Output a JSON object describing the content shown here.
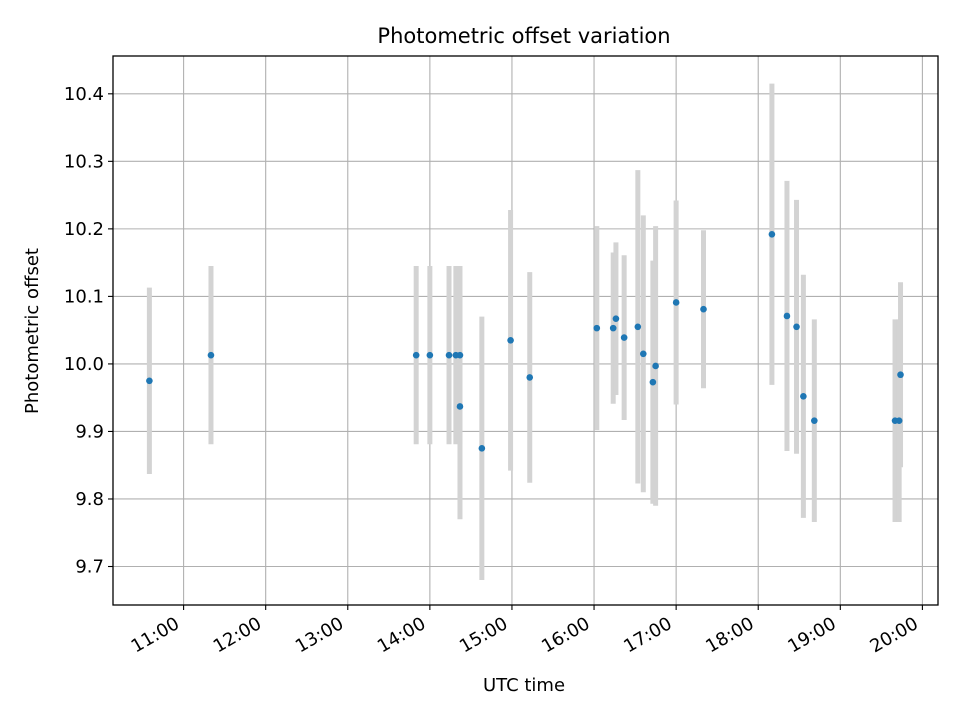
{
  "chart_data": {
    "type": "scatter",
    "title": "Photometric offset variation",
    "xlabel": "UTC time",
    "ylabel": "Photometric offset",
    "x_tick_labels": [
      "11:00",
      "12:00",
      "13:00",
      "14:00",
      "15:00",
      "16:00",
      "17:00",
      "18:00",
      "19:00",
      "20:00"
    ],
    "x_ticks_hours": [
      11,
      12,
      13,
      14,
      15,
      16,
      17,
      18,
      19,
      20
    ],
    "y_ticks": [
      9.7,
      9.8,
      9.9,
      10.0,
      10.1,
      10.2,
      10.3,
      10.4
    ],
    "y_tick_labels": [
      "9.7",
      "9.8",
      "9.9",
      "10.0",
      "10.1",
      "10.2",
      "10.3",
      "10.4"
    ],
    "xlim_hours": [
      10.14,
      20.19
    ],
    "ylim": [
      9.643,
      10.456
    ],
    "grid": true,
    "marker_color": "#1f77b4",
    "errorbar_color": "#d3d3d3",
    "series": [
      {
        "points": [
          {
            "time": "10:35",
            "y": 9.975,
            "err": 0.138
          },
          {
            "time": "11:20",
            "y": 10.013,
            "err": 0.132
          },
          {
            "time": "13:50",
            "y": 10.013,
            "err": 0.132
          },
          {
            "time": "14:00",
            "y": 10.013,
            "err": 0.132
          },
          {
            "time": "14:14",
            "y": 10.013,
            "err": 0.132
          },
          {
            "time": "14:19",
            "y": 10.013,
            "err": 0.132
          },
          {
            "time": "14:22",
            "y": 10.013,
            "err": 0.132
          },
          {
            "time": "14:22",
            "y": 9.937,
            "err": 0.167
          },
          {
            "time": "14:38",
            "y": 9.875,
            "err": 0.195
          },
          {
            "time": "14:59",
            "y": 10.035,
            "err": 0.193
          },
          {
            "time": "15:13",
            "y": 9.98,
            "err": 0.156
          },
          {
            "time": "16:02",
            "y": 10.053,
            "err": 0.151
          },
          {
            "time": "16:14",
            "y": 10.053,
            "err": 0.112
          },
          {
            "time": "16:16",
            "y": 10.067,
            "err": 0.113
          },
          {
            "time": "16:22",
            "y": 10.039,
            "err": 0.122
          },
          {
            "time": "16:32",
            "y": 10.055,
            "err": 0.232
          },
          {
            "time": "16:36",
            "y": 10.015,
            "err": 0.205
          },
          {
            "time": "16:43",
            "y": 9.973,
            "err": 0.18
          },
          {
            "time": "16:45",
            "y": 9.997,
            "err": 0.207
          },
          {
            "time": "17:00",
            "y": 10.091,
            "err": 0.151
          },
          {
            "time": "17:20",
            "y": 10.081,
            "err": 0.117
          },
          {
            "time": "18:10",
            "y": 10.192,
            "err": 0.223
          },
          {
            "time": "18:21",
            "y": 10.071,
            "err": 0.2
          },
          {
            "time": "18:28",
            "y": 10.055,
            "err": 0.188
          },
          {
            "time": "18:33",
            "y": 9.952,
            "err": 0.18
          },
          {
            "time": "18:41",
            "y": 9.916,
            "err": 0.15
          },
          {
            "time": "19:40",
            "y": 9.916,
            "err": 0.15
          },
          {
            "time": "19:43",
            "y": 9.916,
            "err": 0.15
          },
          {
            "time": "19:44",
            "y": 9.984,
            "err": 0.137
          }
        ]
      }
    ]
  }
}
